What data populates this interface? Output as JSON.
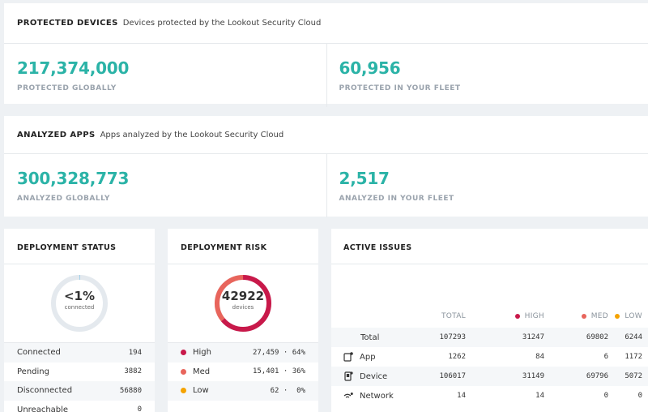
{
  "protected": {
    "title": "PROTECTED DEVICES",
    "subtitle": "Devices protected by the Lookout Security Cloud",
    "global_value": "217,374,000",
    "global_label": "PROTECTED GLOBALLY",
    "fleet_value": "60,956",
    "fleet_label": "PROTECTED IN YOUR FLEET"
  },
  "analyzed": {
    "title": "ANALYZED APPS",
    "subtitle": "Apps analyzed by the Lookout Security Cloud",
    "global_value": "300,328,773",
    "global_label": "ANALYZED GLOBALLY",
    "fleet_value": "2,517",
    "fleet_label": "ANALYZED IN YOUR FLEET"
  },
  "deployment_status": {
    "title": "DEPLOYMENT STATUS",
    "donut_value": "<1%",
    "donut_label": "connected",
    "connected_fraction": 0.003,
    "rows": [
      {
        "label": "Connected",
        "value": "194"
      },
      {
        "label": "Pending",
        "value": "3882"
      },
      {
        "label": "Disconnected",
        "value": "56880"
      },
      {
        "label": "Unreachable",
        "value": "0"
      }
    ]
  },
  "deployment_risk": {
    "title": "DEPLOYMENT RISK",
    "donut_value": "42922",
    "donut_label": "devices",
    "high_fraction": 0.64,
    "med_fraction": 0.36,
    "rows": [
      {
        "label": "High",
        "value": "27,459 · 64%",
        "color": "#c8194a"
      },
      {
        "label": "Med",
        "value": "15,401 · 36%",
        "color": "#e8655c"
      },
      {
        "label": "Low",
        "value": "62 ·  0%",
        "color": "#f5a300"
      }
    ]
  },
  "active_issues": {
    "title": "ACTIVE ISSUES",
    "headers": {
      "total": "TOTAL",
      "high": "HIGH",
      "med": "MED",
      "low": "LOW"
    },
    "colors": {
      "high": "#c8194a",
      "med": "#e8655c",
      "low": "#f5a300"
    },
    "rows": [
      {
        "name": "Total",
        "icon": "",
        "total": "107293",
        "high": "31247",
        "med": "69802",
        "low": "6244"
      },
      {
        "name": "App",
        "icon": "app-icon",
        "total": "1262",
        "high": "84",
        "med": "6",
        "low": "1172"
      },
      {
        "name": "Device",
        "icon": "device-icon",
        "total": "106017",
        "high": "31149",
        "med": "69796",
        "low": "5072"
      },
      {
        "name": "Network",
        "icon": "network-icon",
        "total": "14",
        "high": "14",
        "med": "0",
        "low": "0"
      }
    ]
  }
}
